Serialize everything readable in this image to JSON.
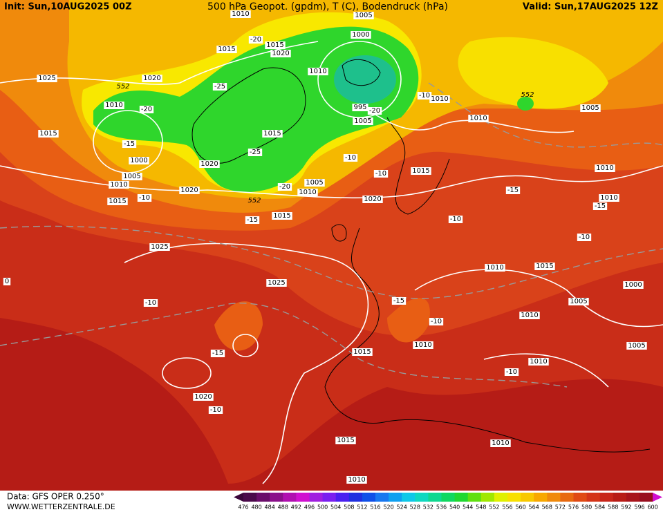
{
  "header": {
    "init": "Init: Sun,10AUG2025 00Z",
    "title": "500 hPa Geopot. (gpdm), T (C), Bodendruck (hPa)",
    "valid": "Valid: Sun,17AUG2025 12Z"
  },
  "footer": {
    "data": "Data: GFS OPER 0.250°",
    "site": "WWW.WETTERZENTRALE.DE"
  },
  "scale": [
    476,
    480,
    484,
    488,
    492,
    496,
    500,
    504,
    508,
    512,
    516,
    520,
    524,
    528,
    532,
    536,
    540,
    544,
    548,
    552,
    556,
    560,
    564,
    568,
    572,
    576,
    580,
    584,
    588,
    592,
    596,
    600
  ],
  "isobar_labels": [
    "1010",
    "1005",
    "1000",
    "1015",
    "1015",
    "1020",
    "1025",
    "1020",
    "1010",
    "1010",
    "1010",
    "995",
    "1005",
    "1010",
    "1005",
    "1015",
    "1015",
    "1000",
    "1020",
    "1005",
    "1010",
    "1020",
    "1015",
    "1005",
    "1010",
    "1015",
    "1010",
    "1020",
    "1015",
    "1010",
    "1025",
    "1025",
    "1010",
    "1015",
    "1000",
    "1005",
    "1010",
    "1010",
    "1015",
    "1005",
    "1010",
    "1020",
    "1015",
    "1010",
    "1010"
  ],
  "temperature_labels": [
    "-20",
    "-25",
    "-20",
    "-15",
    "-25",
    "-20",
    "-10",
    "-15",
    "-10",
    "-10",
    "-20",
    "-10",
    "-15",
    "-15",
    "-10",
    "-10",
    "-10",
    "-15",
    "-10",
    "-15",
    "-10",
    "-10",
    "0"
  ],
  "geopotential_labels": [
    "552",
    "552",
    "552"
  ]
}
